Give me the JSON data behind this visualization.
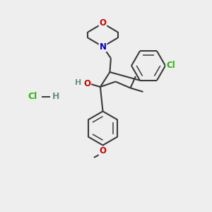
{
  "bg": "#eeeeee",
  "bc": "#3a3a3a",
  "bw": 1.5,
  "ibw": 1.1,
  "fs": 8.5,
  "colors": {
    "O": "#cc0000",
    "N": "#0000cc",
    "Cl": "#22bb00",
    "H": "#6b8e8e",
    "C": "#3a3a3a"
  },
  "xlim": [
    0,
    10
  ],
  "ylim": [
    0,
    10
  ]
}
